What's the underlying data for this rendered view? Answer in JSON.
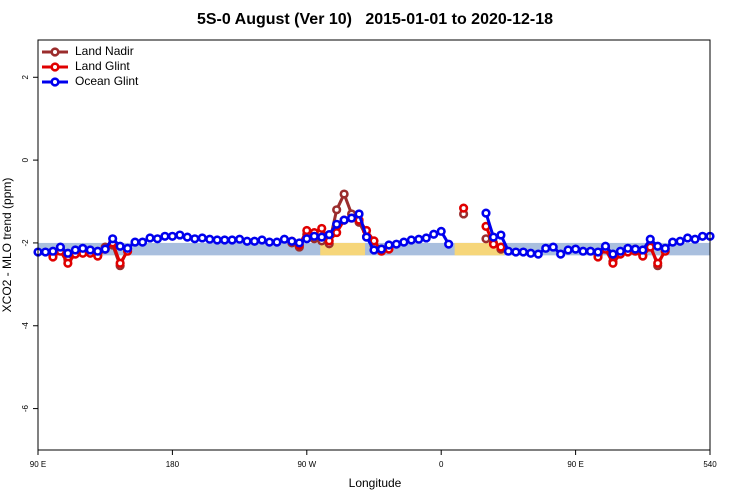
{
  "chart_data": {
    "type": "line",
    "title": "5S-0 August (Ver 10)   2015-01-01 to 2020-12-18",
    "x_label": "Longitude",
    "y_label": "XCO2 - MLO trend (ppm)",
    "xlim": [
      90,
      540
    ],
    "ylim": [
      -7,
      2.9
    ],
    "xticks": [
      {
        "value": 90,
        "label": "90 E"
      },
      180,
      {
        "value": 270,
        "label": "90 W"
      },
      {
        "value": 360,
        "label": "0"
      },
      {
        "value": 450,
        "label": "90 E"
      },
      540
    ],
    "yticks": [
      -6,
      -4,
      -2,
      0,
      2
    ],
    "legend": "top-left",
    "bands": [
      {
        "x": [
          90,
          540
        ],
        "y": [
          -2.3,
          -2.0
        ],
        "color": "#a9bfde"
      },
      {
        "x": [
          279,
          309
        ],
        "y": [
          -2.3,
          -2.0
        ],
        "color": "#f6d67a"
      },
      {
        "x": [
          369,
          402
        ],
        "y": [
          -2.3,
          -2.0
        ],
        "color": "#f6d67a"
      }
    ],
    "x": [
      90,
      95,
      100,
      105,
      110,
      115,
      120,
      125,
      130,
      135,
      140,
      145,
      150,
      155,
      160,
      165,
      170,
      175,
      180,
      185,
      190,
      195,
      200,
      205,
      210,
      215,
      220,
      225,
      230,
      235,
      240,
      245,
      250,
      255,
      260,
      265,
      270,
      275,
      280,
      285,
      290,
      295,
      300,
      305,
      310,
      315,
      320,
      325,
      330,
      335,
      340,
      345,
      350,
      355,
      360,
      365,
      370,
      375,
      380,
      385,
      390,
      395,
      400,
      405,
      410,
      415,
      420,
      425,
      430,
      435,
      440,
      445,
      450,
      455,
      460,
      465,
      470,
      475,
      480,
      485,
      490,
      495,
      500,
      505,
      510,
      515,
      520,
      525,
      530,
      535,
      540
    ],
    "series": [
      {
        "name": "Land Nadir",
        "color": "#9b2d2d",
        "values": [
          null,
          null,
          -2.3,
          -2.15,
          -2.4,
          -2.25,
          -2.2,
          -2.2,
          -2.3,
          -2.1,
          -2.05,
          -2.55,
          -2.15,
          null,
          null,
          null,
          null,
          null,
          null,
          null,
          null,
          null,
          null,
          null,
          null,
          null,
          null,
          null,
          null,
          null,
          null,
          null,
          null,
          null,
          -2.0,
          -2.1,
          -1.8,
          -1.9,
          -1.95,
          -2.02,
          -1.2,
          -0.82,
          -1.3,
          -1.5,
          -1.85,
          -2.05,
          -2.15,
          -2.12,
          null,
          null,
          null,
          null,
          null,
          null,
          null,
          null,
          null,
          -1.3,
          null,
          null,
          -1.9,
          -2.0,
          -2.15,
          null,
          null,
          null,
          null,
          null,
          null,
          null,
          null,
          null,
          null,
          null,
          null,
          -2.3,
          -2.1,
          -2.45,
          -2.25,
          -2.2,
          -2.15,
          -2.3,
          -2.05,
          -2.55,
          -2.15,
          null,
          null,
          null,
          null,
          null,
          null
        ]
      },
      {
        "name": "Land Glint",
        "color": "#e00000",
        "values": [
          null,
          null,
          -2.34,
          -2.2,
          -2.49,
          -2.27,
          -2.25,
          -2.25,
          -2.32,
          -2.15,
          -2.0,
          -2.49,
          -2.2,
          null,
          null,
          null,
          null,
          null,
          null,
          null,
          null,
          null,
          null,
          null,
          null,
          null,
          null,
          null,
          null,
          null,
          null,
          null,
          null,
          null,
          -1.96,
          -2.05,
          -1.7,
          -1.75,
          -1.65,
          -1.95,
          -1.75,
          -1.45,
          -1.4,
          -1.45,
          -1.7,
          -1.95,
          -2.2,
          -2.15,
          null,
          null,
          null,
          null,
          null,
          null,
          null,
          null,
          null,
          -1.16,
          null,
          null,
          -1.6,
          -2.03,
          -2.1,
          null,
          null,
          null,
          null,
          null,
          null,
          null,
          null,
          null,
          null,
          null,
          null,
          -2.34,
          -2.15,
          -2.49,
          -2.27,
          -2.22,
          -2.2,
          -2.32,
          -2.1,
          -2.49,
          -2.2,
          null,
          null,
          null,
          null,
          null,
          null
        ]
      },
      {
        "name": "Ocean Glint",
        "color": "#0000ee",
        "values": [
          -2.22,
          -2.22,
          -2.2,
          -2.1,
          -2.25,
          -2.17,
          -2.13,
          -2.17,
          -2.2,
          -2.15,
          -1.9,
          -2.08,
          -2.13,
          -1.98,
          -1.98,
          -1.88,
          -1.9,
          -1.84,
          -1.84,
          -1.81,
          -1.86,
          -1.9,
          -1.88,
          -1.91,
          -1.93,
          -1.93,
          -1.93,
          -1.91,
          -1.96,
          -1.96,
          -1.93,
          -1.98,
          -1.98,
          -1.91,
          -1.96,
          -2.0,
          -1.9,
          -1.84,
          -1.86,
          -1.8,
          -1.55,
          -1.45,
          -1.4,
          -1.3,
          -1.86,
          -2.17,
          -2.15,
          -2.05,
          -2.03,
          -1.98,
          -1.93,
          -1.91,
          -1.88,
          -1.79,
          -1.72,
          -2.03,
          null,
          null,
          null,
          null,
          -1.28,
          -1.86,
          -1.81,
          -2.2,
          -2.22,
          -2.22,
          -2.25,
          -2.27,
          -2.13,
          -2.1,
          -2.27,
          -2.17,
          -2.15,
          -2.2,
          -2.2,
          -2.22,
          -2.08,
          -2.27,
          -2.2,
          -2.13,
          -2.15,
          -2.17,
          -1.91,
          -2.08,
          -2.13,
          -1.98,
          -1.96,
          -1.88,
          -1.91,
          -1.84,
          -1.84
        ]
      }
    ]
  }
}
